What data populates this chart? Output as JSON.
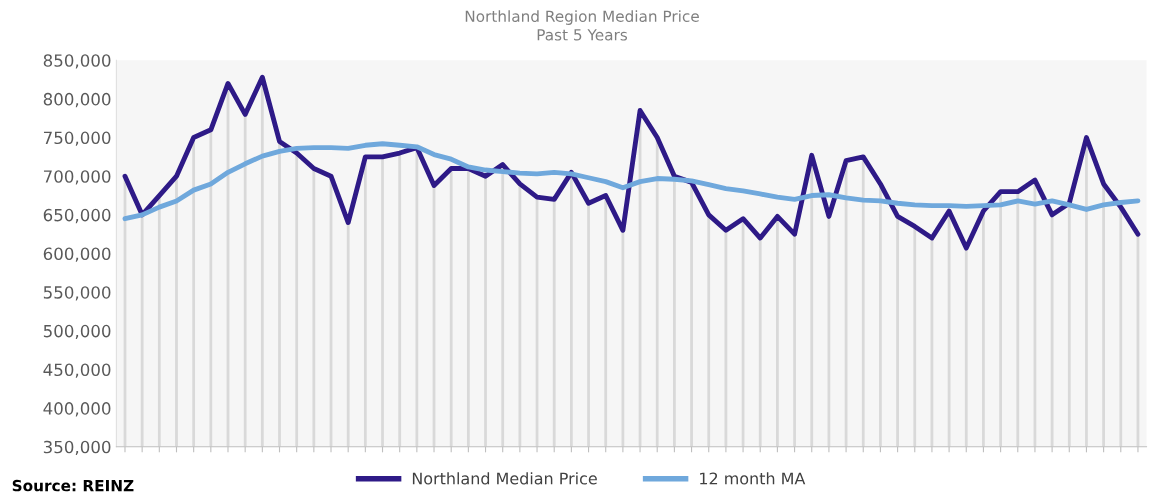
{
  "chart_data": {
    "type": "line",
    "title": "Northland Region Median Price",
    "subtitle": "Past 5 Years",
    "categories": [
      null,
      null,
      null,
      null,
      null,
      null,
      null,
      null,
      null,
      null,
      null,
      null,
      null,
      null,
      null,
      null,
      null,
      null,
      null,
      null,
      null,
      null,
      null,
      null,
      null,
      null,
      null,
      null,
      null,
      null,
      null,
      null,
      null,
      null,
      null,
      null,
      null,
      null,
      null,
      null,
      null,
      null,
      null,
      null,
      null,
      null,
      null,
      null,
      null,
      null,
      null,
      null,
      null,
      null,
      null,
      null,
      null,
      null,
      null,
      null
    ],
    "series": [
      {
        "name": "Northland Median Price",
        "color": "#2e1a87",
        "values": [
          700000,
          650000,
          675000,
          700000,
          750000,
          760000,
          820000,
          780000,
          828000,
          745000,
          730000,
          710000,
          700000,
          640000,
          725000,
          725000,
          730000,
          737000,
          688000,
          710000,
          710000,
          700000,
          715000,
          690000,
          673000,
          670000,
          705000,
          665000,
          675000,
          630000,
          785000,
          750000,
          700000,
          692000,
          650000,
          630000,
          645000,
          620000,
          648000,
          625000,
          727000,
          648000,
          720000,
          725000,
          690000,
          648000,
          635000,
          620000,
          655000,
          607000,
          655000,
          680000,
          680000,
          695000,
          650000,
          665000,
          750000,
          690000,
          660000,
          625000
        ]
      },
      {
        "name": "12 month MA",
        "color": "#6fa8dc",
        "values": [
          645000,
          650000,
          660000,
          668000,
          682000,
          690000,
          705000,
          716000,
          726000,
          732000,
          736000,
          737000,
          737000,
          736000,
          740000,
          742000,
          740000,
          738000,
          728000,
          722000,
          712000,
          708000,
          706000,
          704000,
          703000,
          705000,
          703000,
          698000,
          693000,
          685000,
          693000,
          697000,
          696000,
          694000,
          689000,
          684000,
          681000,
          677000,
          673000,
          670000,
          675000,
          676000,
          672000,
          669000,
          668000,
          665000,
          663000,
          662000,
          662000,
          661000,
          662000,
          663000,
          668000,
          664000,
          668000,
          663000,
          657000,
          663000,
          666000,
          668000
        ]
      }
    ],
    "ylim": [
      350000,
      850000
    ],
    "yticks": [
      {
        "value": 350000,
        "label": "350,000"
      },
      {
        "value": 400000,
        "label": "400,000"
      },
      {
        "value": 450000,
        "label": "450,000"
      },
      {
        "value": 500000,
        "label": "500,000"
      },
      {
        "value": 550000,
        "label": "550,000"
      },
      {
        "value": 600000,
        "label": "600,000"
      },
      {
        "value": 650000,
        "label": "650,000"
      },
      {
        "value": 700000,
        "label": "700,000"
      },
      {
        "value": 750000,
        "label": "750,000"
      },
      {
        "value": 800000,
        "label": "800,000"
      },
      {
        "value": 850000,
        "label": "850,000"
      }
    ],
    "grid": "x",
    "legend": "bottom",
    "marker": "none",
    "line_style": "solid",
    "annotations": [
      "Source: REINZ"
    ]
  }
}
